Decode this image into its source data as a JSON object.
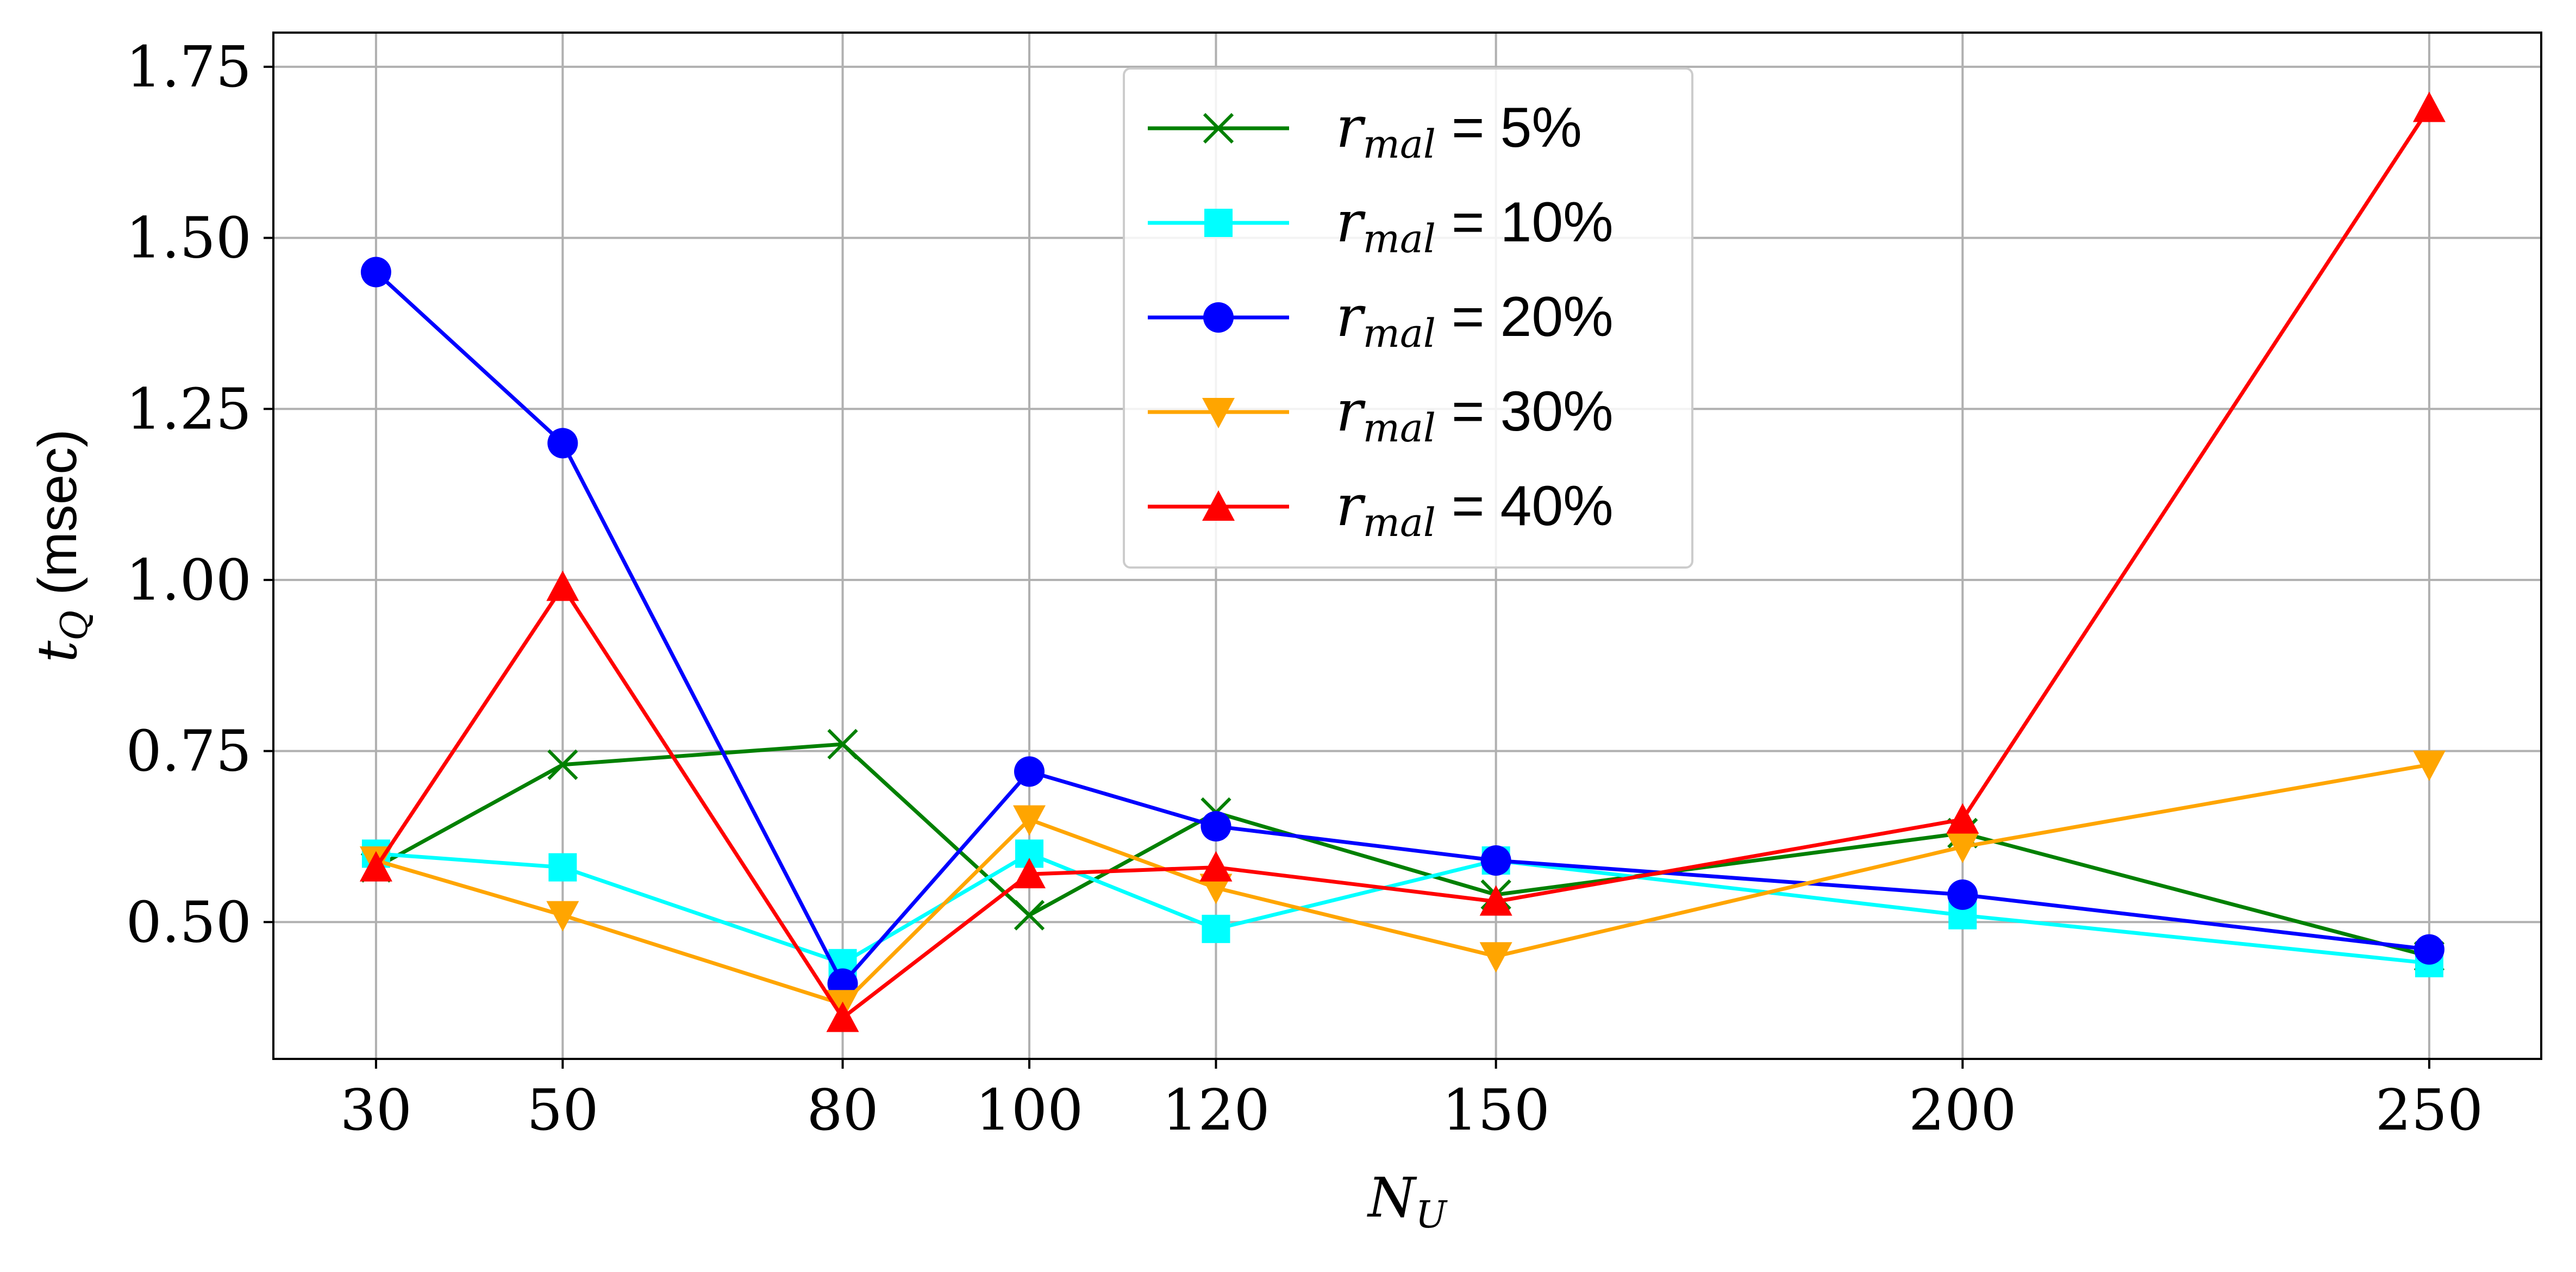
{
  "chart_data": {
    "type": "line",
    "xlabel": {
      "base": "N",
      "sub": "U"
    },
    "ylabel": {
      "base": "t",
      "sub": "Q",
      "suffix": " (msec)"
    },
    "x": [
      30,
      50,
      80,
      100,
      120,
      150,
      200,
      250
    ],
    "xticks": [
      "30",
      "50",
      "80",
      "100",
      "120",
      "150",
      "200",
      "250"
    ],
    "yticks": [
      "0.50",
      "0.75",
      "1.00",
      "1.25",
      "1.50",
      "1.75"
    ],
    "ytick_values": [
      0.5,
      0.75,
      1.0,
      1.25,
      1.5,
      1.75
    ],
    "xlim": [
      19,
      262
    ],
    "ylim": [
      0.3,
      1.8
    ],
    "grid": true,
    "legend_position": "top-center",
    "series": [
      {
        "name": "r_mal = 5%",
        "label_base": "r",
        "label_sub": "mal",
        "label_value": " = 5%",
        "color": "#008000",
        "marker": "x",
        "values": [
          0.58,
          0.73,
          0.76,
          0.51,
          0.66,
          0.54,
          0.63,
          0.45
        ]
      },
      {
        "name": "r_mal = 10%",
        "label_base": "r",
        "label_sub": "mal",
        "label_value": " = 10%",
        "color": "#00FFFF",
        "marker": "square",
        "values": [
          0.6,
          0.58,
          0.44,
          0.6,
          0.49,
          0.59,
          0.51,
          0.44
        ]
      },
      {
        "name": "r_mal = 20%",
        "label_base": "r",
        "label_sub": "mal",
        "label_value": " = 20%",
        "color": "#0000FF",
        "marker": "circle",
        "values": [
          1.45,
          1.2,
          0.41,
          0.72,
          0.64,
          0.59,
          0.54,
          0.46
        ]
      },
      {
        "name": "r_mal = 30%",
        "label_base": "r",
        "label_sub": "mal",
        "label_value": " = 30%",
        "color": "#FFA500",
        "marker": "triangle-down",
        "values": [
          0.59,
          0.51,
          0.38,
          0.65,
          0.55,
          0.45,
          0.61,
          0.73
        ]
      },
      {
        "name": "r_mal = 40%",
        "label_base": "r",
        "label_sub": "mal",
        "label_value": " = 40%",
        "color": "#FF0000",
        "marker": "triangle-up",
        "values": [
          0.58,
          0.99,
          0.36,
          0.57,
          0.58,
          0.53,
          0.65,
          1.69
        ]
      }
    ]
  }
}
